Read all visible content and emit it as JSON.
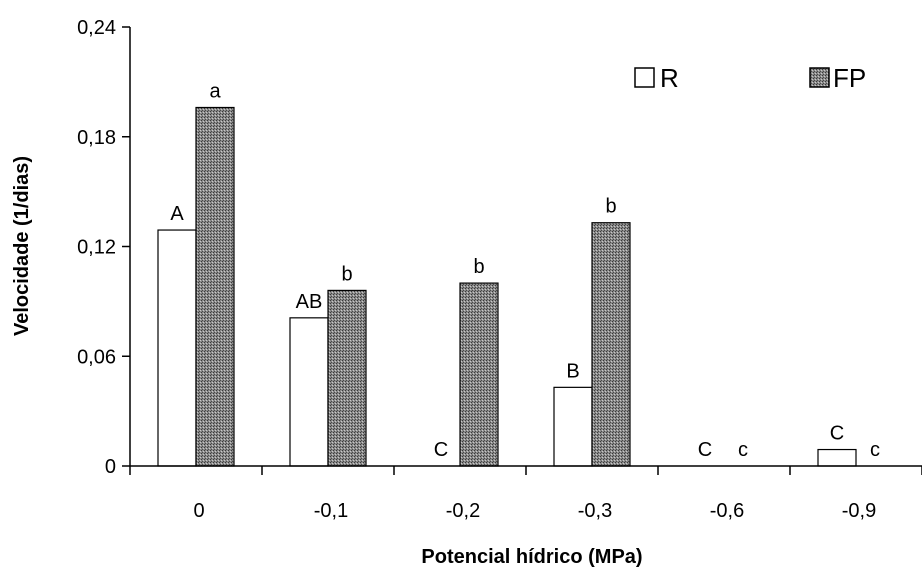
{
  "chart_data": {
    "type": "bar",
    "xlabel": "Potencial hídrico (MPa)",
    "ylabel": "Velocidade (1/dias)",
    "ylim": [
      0,
      0.24
    ],
    "yticks": [
      "0",
      "0,06",
      "0,12",
      "0,18",
      "0,24"
    ],
    "categories": [
      "0",
      "-0,1",
      "-0,2",
      "-0,3",
      "-0,6",
      "-0,9"
    ],
    "legend_position": "top-right",
    "series": [
      {
        "name": "R",
        "color": "#ffffff",
        "values": [
          0.129,
          0.081,
          0,
          0.043,
          0,
          0.009
        ],
        "labels": [
          "A",
          "AB",
          "C",
          "B",
          "C",
          "C"
        ]
      },
      {
        "name": "FP",
        "color": "#808080",
        "values": [
          0.196,
          0.096,
          0.1,
          0.133,
          0,
          0
        ],
        "labels": [
          "a",
          "b",
          "b",
          "b",
          "c",
          "c"
        ]
      }
    ]
  }
}
